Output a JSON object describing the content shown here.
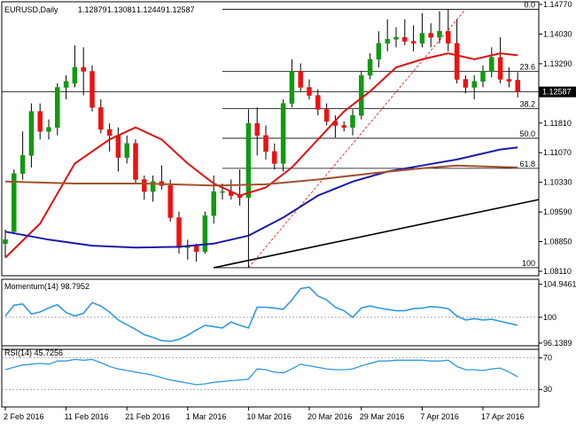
{
  "chart_data": [
    {
      "type": "candlestick",
      "title": "EURUSD,Daily",
      "ohlc_readout": [
        "1.12879",
        "1.13081",
        "1.12449",
        "1.12587"
      ],
      "current_price_label": "1.12587",
      "ylim": [
        1.0811,
        1.1477
      ],
      "y_ticks": [
        "1.14770",
        "1.14030",
        "1.13290",
        "1.12550",
        "1.11810",
        "1.11070",
        "1.10330",
        "1.09590",
        "1.08850",
        "1.08110"
      ],
      "x_ticks": [
        "2 Feb 2016",
        "11 Feb 2016",
        "21 Feb 2016",
        "1 Mar 2016",
        "10 Mar 2016",
        "20 Mar 2016",
        "29 Mar 2016",
        "7 Apr 2016",
        "17 Apr 2016"
      ],
      "up_color": "#119911",
      "down_color": "#ee1111",
      "candles": [
        {
          "date": "2016-02-01",
          "o": 1.088,
          "h": 1.0915,
          "l": 1.0845,
          "c": 1.089
        },
        {
          "date": "2016-02-02",
          "o": 1.091,
          "h": 1.1065,
          "l": 1.0905,
          "c": 1.1055
        },
        {
          "date": "2016-02-03",
          "o": 1.1055,
          "h": 1.116,
          "l": 1.104,
          "c": 1.11
        },
        {
          "date": "2016-02-04",
          "o": 1.11,
          "h": 1.123,
          "l": 1.107,
          "c": 1.121
        },
        {
          "date": "2016-02-05",
          "o": 1.121,
          "h": 1.123,
          "l": 1.114,
          "c": 1.116
        },
        {
          "date": "2016-02-08",
          "o": 1.116,
          "h": 1.119,
          "l": 1.114,
          "c": 1.117
        },
        {
          "date": "2016-02-09",
          "o": 1.117,
          "h": 1.128,
          "l": 1.115,
          "c": 1.127
        },
        {
          "date": "2016-02-10",
          "o": 1.127,
          "h": 1.13,
          "l": 1.124,
          "c": 1.1285
        },
        {
          "date": "2016-02-11",
          "o": 1.128,
          "h": 1.1375,
          "l": 1.127,
          "c": 1.132
        },
        {
          "date": "2016-02-12",
          "o": 1.132,
          "h": 1.137,
          "l": 1.125,
          "c": 1.131
        },
        {
          "date": "2016-02-15",
          "o": 1.131,
          "h": 1.1325,
          "l": 1.121,
          "c": 1.122
        },
        {
          "date": "2016-02-16",
          "o": 1.122,
          "h": 1.124,
          "l": 1.1155,
          "c": 1.1165
        },
        {
          "date": "2016-02-17",
          "o": 1.1165,
          "h": 1.118,
          "l": 1.111,
          "c": 1.115
        },
        {
          "date": "2016-02-18",
          "o": 1.115,
          "h": 1.117,
          "l": 1.106,
          "c": 1.1095
        },
        {
          "date": "2016-02-19",
          "o": 1.1095,
          "h": 1.115,
          "l": 1.108,
          "c": 1.113
        },
        {
          "date": "2016-02-22",
          "o": 1.113,
          "h": 1.114,
          "l": 1.103,
          "c": 1.104
        },
        {
          "date": "2016-02-23",
          "o": 1.104,
          "h": 1.105,
          "l": 1.099,
          "c": 1.101
        },
        {
          "date": "2016-02-24",
          "o": 1.101,
          "h": 1.105,
          "l": 1.0985,
          "c": 1.1035
        },
        {
          "date": "2016-02-25",
          "o": 1.1035,
          "h": 1.1075,
          "l": 1.1015,
          "c": 1.1025
        },
        {
          "date": "2016-02-26",
          "o": 1.1025,
          "h": 1.104,
          "l": 1.0935,
          "c": 1.0945
        },
        {
          "date": "2016-02-29",
          "o": 1.0945,
          "h": 1.096,
          "l": 1.0855,
          "c": 1.087
        },
        {
          "date": "2016-03-01",
          "o": 1.087,
          "h": 1.089,
          "l": 1.084,
          "c": 1.0875
        },
        {
          "date": "2016-03-02",
          "o": 1.0875,
          "h": 1.088,
          "l": 1.0835,
          "c": 1.086
        },
        {
          "date": "2016-03-03",
          "o": 1.086,
          "h": 1.096,
          "l": 1.0855,
          "c": 1.095
        },
        {
          "date": "2016-03-04",
          "o": 1.095,
          "h": 1.105,
          "l": 1.093,
          "c": 1.101
        },
        {
          "date": "2016-03-07",
          "o": 1.101,
          "h": 1.103,
          "l": 1.099,
          "c": 1.101
        },
        {
          "date": "2016-03-08",
          "o": 1.101,
          "h": 1.104,
          "l": 1.099,
          "c": 1.1
        },
        {
          "date": "2016-03-09",
          "o": 1.1,
          "h": 1.1065,
          "l": 1.0975,
          "c": 1.0995
        },
        {
          "date": "2016-03-10",
          "o": 1.0995,
          "h": 1.1215,
          "l": 1.082,
          "c": 1.118
        },
        {
          "date": "2016-03-11",
          "o": 1.118,
          "h": 1.122,
          "l": 1.11,
          "c": 1.115
        },
        {
          "date": "2016-03-14",
          "o": 1.115,
          "h": 1.1175,
          "l": 1.109,
          "c": 1.111
        },
        {
          "date": "2016-03-15",
          "o": 1.111,
          "h": 1.113,
          "l": 1.1065,
          "c": 1.108
        },
        {
          "date": "2016-03-16",
          "o": 1.108,
          "h": 1.124,
          "l": 1.106,
          "c": 1.123
        },
        {
          "date": "2016-03-17",
          "o": 1.123,
          "h": 1.134,
          "l": 1.122,
          "c": 1.131
        },
        {
          "date": "2016-03-18",
          "o": 1.131,
          "h": 1.133,
          "l": 1.126,
          "c": 1.127
        },
        {
          "date": "2016-03-21",
          "o": 1.127,
          "h": 1.129,
          "l": 1.124,
          "c": 1.125
        },
        {
          "date": "2016-03-22",
          "o": 1.125,
          "h": 1.1265,
          "l": 1.12,
          "c": 1.1215
        },
        {
          "date": "2016-03-23",
          "o": 1.1215,
          "h": 1.123,
          "l": 1.1175,
          "c": 1.1185
        },
        {
          "date": "2016-03-24",
          "o": 1.1185,
          "h": 1.12,
          "l": 1.1145,
          "c": 1.1175
        },
        {
          "date": "2016-03-25",
          "o": 1.1175,
          "h": 1.1185,
          "l": 1.116,
          "c": 1.117
        },
        {
          "date": "2016-03-28",
          "o": 1.117,
          "h": 1.1215,
          "l": 1.115,
          "c": 1.12
        },
        {
          "date": "2016-03-29",
          "o": 1.12,
          "h": 1.131,
          "l": 1.119,
          "c": 1.13
        },
        {
          "date": "2016-03-30",
          "o": 1.13,
          "h": 1.1355,
          "l": 1.129,
          "c": 1.134
        },
        {
          "date": "2016-03-31",
          "o": 1.134,
          "h": 1.141,
          "l": 1.132,
          "c": 1.138
        },
        {
          "date": "2016-04-01",
          "o": 1.138,
          "h": 1.144,
          "l": 1.136,
          "c": 1.139
        },
        {
          "date": "2016-04-04",
          "o": 1.139,
          "h": 1.142,
          "l": 1.137,
          "c": 1.1395
        },
        {
          "date": "2016-04-05",
          "o": 1.1395,
          "h": 1.144,
          "l": 1.1375,
          "c": 1.1385
        },
        {
          "date": "2016-04-06",
          "o": 1.1385,
          "h": 1.1425,
          "l": 1.136,
          "c": 1.138
        },
        {
          "date": "2016-04-07",
          "o": 1.138,
          "h": 1.1455,
          "l": 1.137,
          "c": 1.1405
        },
        {
          "date": "2016-04-08",
          "o": 1.1405,
          "h": 1.143,
          "l": 1.137,
          "c": 1.1395
        },
        {
          "date": "2016-04-11",
          "o": 1.1395,
          "h": 1.146,
          "l": 1.138,
          "c": 1.141
        },
        {
          "date": "2016-04-12",
          "o": 1.141,
          "h": 1.1465,
          "l": 1.136,
          "c": 1.138
        },
        {
          "date": "2016-04-13",
          "o": 1.138,
          "h": 1.144,
          "l": 1.128,
          "c": 1.129
        },
        {
          "date": "2016-04-14",
          "o": 1.129,
          "h": 1.13,
          "l": 1.1255,
          "c": 1.127
        },
        {
          "date": "2016-04-15",
          "o": 1.127,
          "h": 1.13,
          "l": 1.124,
          "c": 1.1285
        },
        {
          "date": "2016-04-18",
          "o": 1.1285,
          "h": 1.1325,
          "l": 1.127,
          "c": 1.131
        },
        {
          "date": "2016-04-19",
          "o": 1.131,
          "h": 1.137,
          "l": 1.1295,
          "c": 1.1345
        },
        {
          "date": "2016-04-20",
          "o": 1.1345,
          "h": 1.1395,
          "l": 1.128,
          "c": 1.129
        },
        {
          "date": "2016-04-21",
          "o": 1.129,
          "h": 1.132,
          "l": 1.127,
          "c": 1.1285
        },
        {
          "date": "2016-04-22",
          "o": 1.1288,
          "h": 1.1308,
          "l": 1.1245,
          "c": 1.1259
        }
      ],
      "fibonacci_levels": [
        {
          "label": "0.0",
          "price": 1.1465
        },
        {
          "label": "23.6",
          "price": 1.131
        },
        {
          "label": "38.2",
          "price": 1.1217
        },
        {
          "label": "50.0",
          "price": 1.1143
        },
        {
          "label": "61.8",
          "price": 1.1068
        },
        {
          "label": "100",
          "price": 1.082
        }
      ],
      "moving_averages": [
        {
          "color": "#dd1111",
          "points": [
            [
              0,
              1.0845
            ],
            [
              4,
              1.093
            ],
            [
              8,
              1.108
            ],
            [
              12,
              1.114
            ],
            [
              15,
              1.117
            ],
            [
              18,
              1.114
            ],
            [
              21,
              1.108
            ],
            [
              24,
              1.103
            ],
            [
              27,
              1.1
            ],
            [
              30,
              1.102
            ],
            [
              33,
              1.107
            ],
            [
              36,
              1.114
            ],
            [
              39,
              1.121
            ],
            [
              42,
              1.126
            ],
            [
              45,
              1.132
            ],
            [
              48,
              1.134
            ],
            [
              51,
              1.1355
            ],
            [
              54,
              1.134
            ],
            [
              57,
              1.1355
            ],
            [
              59,
              1.135
            ]
          ]
        },
        {
          "color": "#1a1aaa",
          "points": [
            [
              0,
              1.091
            ],
            [
              5,
              1.089
            ],
            [
              10,
              1.0875
            ],
            [
              15,
              1.087
            ],
            [
              20,
              1.0872
            ],
            [
              24,
              1.088
            ],
            [
              28,
              1.09
            ],
            [
              32,
              1.0945
            ],
            [
              36,
              1.1
            ],
            [
              40,
              1.1035
            ],
            [
              44,
              1.106
            ],
            [
              48,
              1.1075
            ],
            [
              52,
              1.109
            ],
            [
              55,
              1.1105
            ],
            [
              57,
              1.1115
            ],
            [
              59,
              1.112
            ]
          ]
        },
        {
          "color": "#a0522d",
          "points": [
            [
              0,
              1.1035
            ],
            [
              8,
              1.103
            ],
            [
              16,
              1.103
            ],
            [
              24,
              1.1025
            ],
            [
              30,
              1.1028
            ],
            [
              36,
              1.104
            ],
            [
              42,
              1.1055
            ],
            [
              48,
              1.1068
            ],
            [
              52,
              1.1075
            ],
            [
              56,
              1.1072
            ],
            [
              59,
              1.107
            ]
          ]
        }
      ],
      "trendline": {
        "from": [
          24,
          1.082
        ],
        "to": [
          60,
          1.099
        ]
      },
      "retrace_line": {
        "from": [
          28,
          1.082
        ],
        "to": [
          53,
          1.1465
        ]
      }
    },
    {
      "type": "line",
      "title": "Momentum(14) 98.7952",
      "y_ticks": [
        "104.9461",
        "100",
        "96.1389"
      ],
      "ylim": [
        95.6,
        105.3
      ],
      "ref_level": 100,
      "series": [
        {
          "color": "#3399dd",
          "values": [
            100.2,
            101.8,
            102.0,
            100.5,
            100.8,
            101.4,
            101.9,
            100.7,
            100.2,
            100.6,
            102.2,
            101.7,
            100.8,
            99.6,
            98.9,
            98.2,
            97.4,
            97.0,
            96.5,
            96.4,
            96.7,
            97.3,
            98.1,
            98.8,
            98.6,
            98.4,
            99.3,
            98.8,
            98.4,
            101.5,
            101.5,
            101.4,
            101.2,
            102.6,
            104.3,
            104.5,
            103.2,
            102.6,
            101.5,
            101.0,
            100.0,
            101.4,
            101.7,
            101.4,
            101.2,
            101.0,
            101.0,
            101.3,
            101.4,
            101.6,
            101.5,
            101.3,
            100.2,
            99.6,
            99.8,
            99.6,
            99.7,
            99.4,
            99.1,
            98.8
          ]
        }
      ]
    },
    {
      "type": "line",
      "title": "RSI(14) 45.7256",
      "y_ticks": [
        "70",
        "30"
      ],
      "ylim": [
        10,
        82
      ],
      "ref_levels": [
        70,
        30
      ],
      "series": [
        {
          "color": "#3399dd",
          "values": [
            55,
            58,
            61,
            62,
            63,
            62,
            66,
            66,
            68,
            67,
            68,
            64,
            59,
            56,
            54,
            52,
            50,
            48,
            45,
            42,
            40,
            38,
            36,
            37,
            39,
            40,
            41,
            42,
            43,
            56,
            55,
            52,
            51,
            56,
            62,
            60,
            58,
            56,
            55,
            55,
            56,
            60,
            63,
            66,
            66,
            67,
            67,
            67,
            67,
            66,
            66,
            67,
            59,
            55,
            55,
            54,
            56,
            57,
            52,
            46
          ]
        }
      ]
    }
  ]
}
